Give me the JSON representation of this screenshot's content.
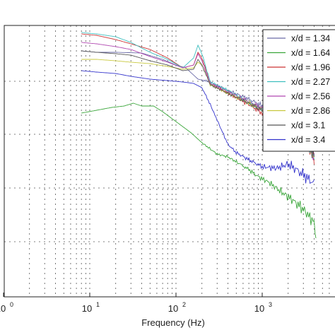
{
  "chart_data": {
    "type": "line",
    "xlabel": "Frequency (Hz)",
    "ylabel": "",
    "x_scale": "log",
    "y_scale": "log",
    "xlim": [
      1,
      8000
    ],
    "x_ticks": [
      {
        "value": 1,
        "base": "10",
        "exp": "0"
      },
      {
        "value": 10,
        "base": "10",
        "exp": "1"
      },
      {
        "value": 100,
        "base": "10",
        "exp": "2"
      },
      {
        "value": 1000,
        "base": "10",
        "exp": "3"
      }
    ],
    "grid": "dotted, x and y",
    "legend_position": "top-right",
    "series": [
      {
        "name": "x/d = 1.34",
        "color": "#6b6ba8",
        "points": [
          [
            8,
            72
          ],
          [
            12,
            74
          ],
          [
            20,
            74
          ],
          [
            40,
            75
          ],
          [
            70,
            84
          ],
          [
            100,
            92
          ],
          [
            130,
            96
          ],
          [
            180,
            112
          ],
          [
            250,
            116
          ],
          [
            400,
            128
          ],
          [
            700,
            140
          ],
          [
            1000,
            150
          ],
          [
            1500,
            158
          ],
          [
            2500,
            172
          ],
          [
            3200,
            182
          ],
          [
            4000,
            205
          ]
        ]
      },
      {
        "name": "x/d = 1.64",
        "color": "#3aa63a",
        "points": [
          [
            8,
            160
          ],
          [
            12,
            156
          ],
          [
            18,
            152
          ],
          [
            25,
            150
          ],
          [
            32,
            146
          ],
          [
            40,
            150
          ],
          [
            55,
            150
          ],
          [
            70,
            158
          ],
          [
            100,
            172
          ],
          [
            150,
            188
          ],
          [
            200,
            202
          ],
          [
            300,
            218
          ],
          [
            400,
            222
          ],
          [
            550,
            232
          ],
          [
            700,
            240
          ],
          [
            900,
            250
          ],
          [
            1200,
            258
          ],
          [
            1600,
            270
          ],
          [
            2200,
            282
          ],
          [
            3000,
            296
          ],
          [
            4000,
            315
          ],
          [
            4200,
            340
          ]
        ]
      },
      {
        "name": "x/d = 1.96",
        "color": "#cc3333",
        "points": [
          [
            8,
            48
          ],
          [
            12,
            50
          ],
          [
            20,
            56
          ],
          [
            30,
            62
          ],
          [
            50,
            70
          ],
          [
            80,
            82
          ],
          [
            120,
            96
          ],
          [
            160,
            92
          ],
          [
            180,
            74
          ],
          [
            200,
            82
          ],
          [
            250,
            118
          ],
          [
            400,
            132
          ],
          [
            700,
            148
          ],
          [
            1000,
            160
          ],
          [
            1500,
            170
          ],
          [
            2500,
            190
          ],
          [
            3200,
            200
          ],
          [
            4000,
            225
          ]
        ]
      },
      {
        "name": "x/d = 2.27",
        "color": "#3fbfbf",
        "points": [
          [
            8,
            46
          ],
          [
            12,
            48
          ],
          [
            20,
            52
          ],
          [
            30,
            60
          ],
          [
            50,
            74
          ],
          [
            80,
            84
          ],
          [
            120,
            96
          ],
          [
            160,
            82
          ],
          [
            180,
            64
          ],
          [
            200,
            76
          ],
          [
            250,
            116
          ],
          [
            400,
            128
          ],
          [
            700,
            145
          ],
          [
            1000,
            155
          ],
          [
            1500,
            168
          ],
          [
            2500,
            185
          ],
          [
            3200,
            198
          ],
          [
            4000,
            222
          ]
        ]
      },
      {
        "name": "x/d = 2.56",
        "color": "#b046b0",
        "points": [
          [
            8,
            60
          ],
          [
            12,
            62
          ],
          [
            20,
            66
          ],
          [
            30,
            70
          ],
          [
            50,
            80
          ],
          [
            80,
            88
          ],
          [
            120,
            96
          ],
          [
            160,
            92
          ],
          [
            180,
            76
          ],
          [
            200,
            86
          ],
          [
            250,
            118
          ],
          [
            400,
            130
          ],
          [
            700,
            144
          ],
          [
            1000,
            154
          ],
          [
            1500,
            166
          ],
          [
            2500,
            184
          ],
          [
            3200,
            196
          ],
          [
            4000,
            220
          ]
        ]
      },
      {
        "name": "x/d = 2.86",
        "color": "#c8c83c",
        "points": [
          [
            8,
            84
          ],
          [
            12,
            84
          ],
          [
            20,
            86
          ],
          [
            30,
            88
          ],
          [
            50,
            90
          ],
          [
            80,
            94
          ],
          [
            120,
            98
          ],
          [
            160,
            96
          ],
          [
            180,
            88
          ],
          [
            200,
            92
          ],
          [
            250,
            120
          ],
          [
            400,
            132
          ],
          [
            700,
            146
          ],
          [
            1000,
            156
          ],
          [
            1500,
            168
          ],
          [
            2500,
            186
          ],
          [
            3200,
            198
          ],
          [
            4000,
            222
          ]
        ]
      },
      {
        "name": "x/d = 3.1",
        "color": "#555555",
        "points": [
          [
            8,
            72
          ],
          [
            12,
            74
          ],
          [
            20,
            76
          ],
          [
            30,
            78
          ],
          [
            50,
            86
          ],
          [
            80,
            92
          ],
          [
            120,
            100
          ],
          [
            160,
            98
          ],
          [
            180,
            84
          ],
          [
            200,
            92
          ],
          [
            250,
            120
          ],
          [
            400,
            132
          ],
          [
            700,
            146
          ],
          [
            1000,
            156
          ],
          [
            1500,
            168
          ],
          [
            2500,
            186
          ],
          [
            3200,
            198
          ],
          [
            4000,
            220
          ]
        ]
      },
      {
        "name": "x/d = 3.4",
        "color": "#3333cc",
        "points": [
          [
            8,
            100
          ],
          [
            12,
            102
          ],
          [
            20,
            104
          ],
          [
            30,
            108
          ],
          [
            50,
            112
          ],
          [
            80,
            114
          ],
          [
            120,
            116
          ],
          [
            160,
            118
          ],
          [
            200,
            124
          ],
          [
            250,
            148
          ],
          [
            300,
            170
          ],
          [
            400,
            204
          ],
          [
            500,
            216
          ],
          [
            700,
            226
          ],
          [
            1000,
            236
          ],
          [
            1500,
            238
          ],
          [
            2000,
            232
          ],
          [
            2500,
            240
          ],
          [
            3200,
            250
          ],
          [
            4000,
            260
          ]
        ]
      }
    ]
  }
}
